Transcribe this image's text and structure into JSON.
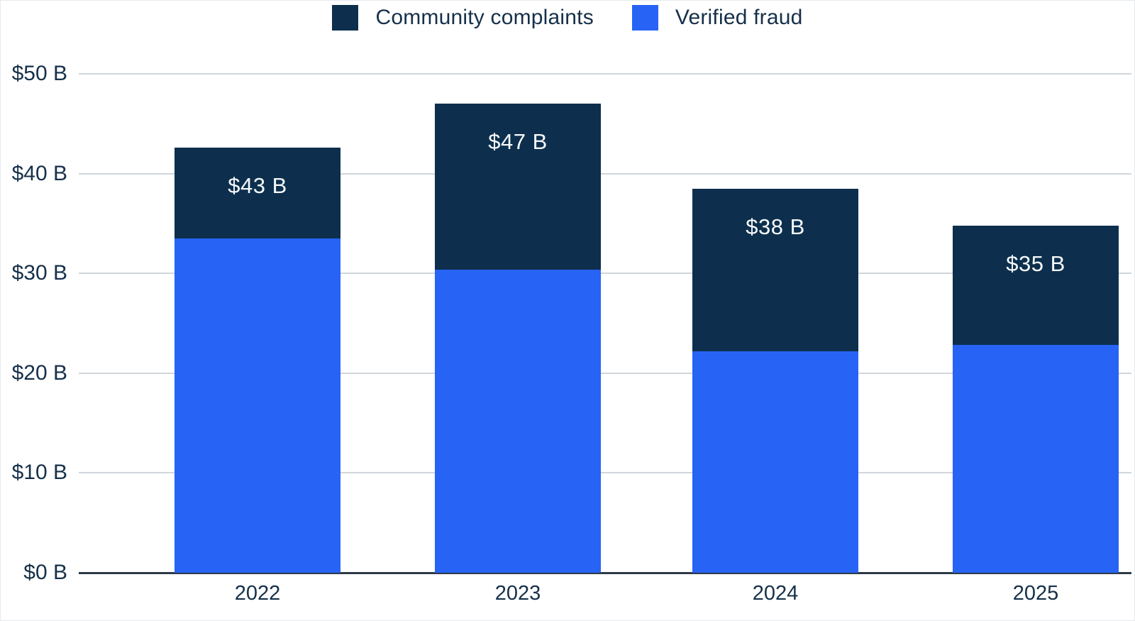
{
  "chart_data": {
    "type": "stacked-bar",
    "title": "",
    "xlabel": "",
    "ylabel": "",
    "categories": [
      "2022",
      "2023",
      "2024",
      "2025"
    ],
    "series": [
      {
        "name": "Community complaints",
        "color": "#0d2f4d",
        "values": [
          9.1,
          16.6,
          16.3,
          12.0
        ]
      },
      {
        "name": "Verified fraud",
        "color": "#2764f5",
        "values": [
          33.5,
          30.4,
          22.2,
          22.8
        ]
      }
    ],
    "totals": [
      42.6,
      47.0,
      38.5,
      34.8
    ],
    "total_labels": [
      "$43 B",
      "$47 B",
      "$38 B",
      "$35 B"
    ],
    "yticks": [
      {
        "value": 0,
        "label": "$0 B"
      },
      {
        "value": 10,
        "label": "$10 B"
      },
      {
        "value": 20,
        "label": "$20 B"
      },
      {
        "value": 30,
        "label": "$30 B"
      },
      {
        "value": 40,
        "label": "$40 B"
      },
      {
        "value": 50,
        "label": "$50 B"
      }
    ],
    "ylim": [
      0,
      50
    ],
    "legend_position": "top",
    "grid": "horizontal",
    "colors": {
      "axis_text": "#16304a",
      "gridline": "#d0d6db",
      "axis_line": "#2e3a46",
      "bar_label": "#f7fafc",
      "background": "#ffffff"
    }
  }
}
